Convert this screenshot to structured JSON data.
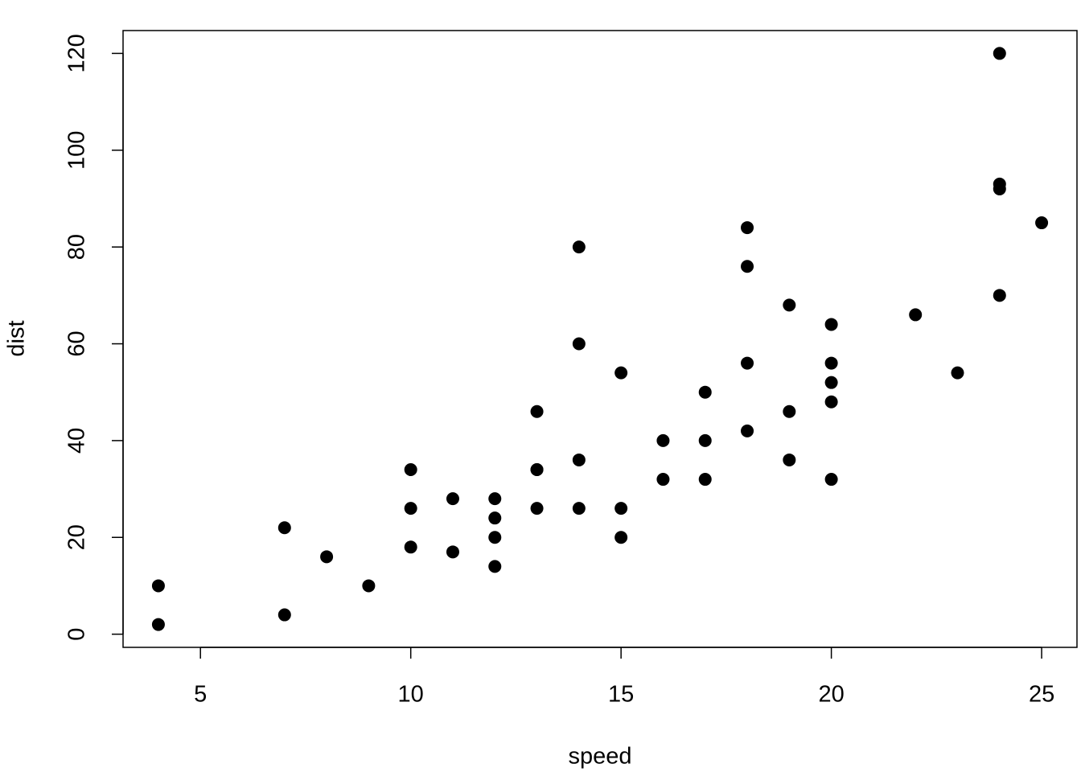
{
  "chart_data": {
    "type": "scatter",
    "x_label": "speed",
    "y_label": "dist",
    "series": [
      {
        "color": "#000000",
        "x": [
          4,
          4,
          7,
          7,
          8,
          9,
          10,
          10,
          10,
          11,
          11,
          12,
          12,
          12,
          12,
          13,
          13,
          13,
          13,
          14,
          14,
          14,
          14,
          15,
          15,
          15,
          16,
          16,
          17,
          17,
          17,
          18,
          18,
          18,
          18,
          19,
          19,
          19,
          20,
          20,
          20,
          20,
          20,
          22,
          23,
          24,
          24,
          24,
          24,
          25
        ],
        "values": [
          2,
          10,
          4,
          22,
          16,
          10,
          18,
          26,
          34,
          17,
          28,
          14,
          20,
          24,
          28,
          26,
          34,
          34,
          46,
          26,
          36,
          60,
          80,
          20,
          26,
          54,
          32,
          40,
          32,
          40,
          50,
          42,
          56,
          76,
          84,
          36,
          46,
          68,
          32,
          48,
          52,
          56,
          64,
          66,
          54,
          70,
          92,
          93,
          120,
          85
        ]
      }
    ],
    "xlim": [
      3.16,
      25.84
    ],
    "xticks": [
      5,
      10,
      15,
      20,
      25
    ],
    "ylim": [
      -2.72,
      124.72
    ],
    "yticks": [
      0,
      20,
      40,
      60,
      80,
      100,
      120
    ]
  }
}
